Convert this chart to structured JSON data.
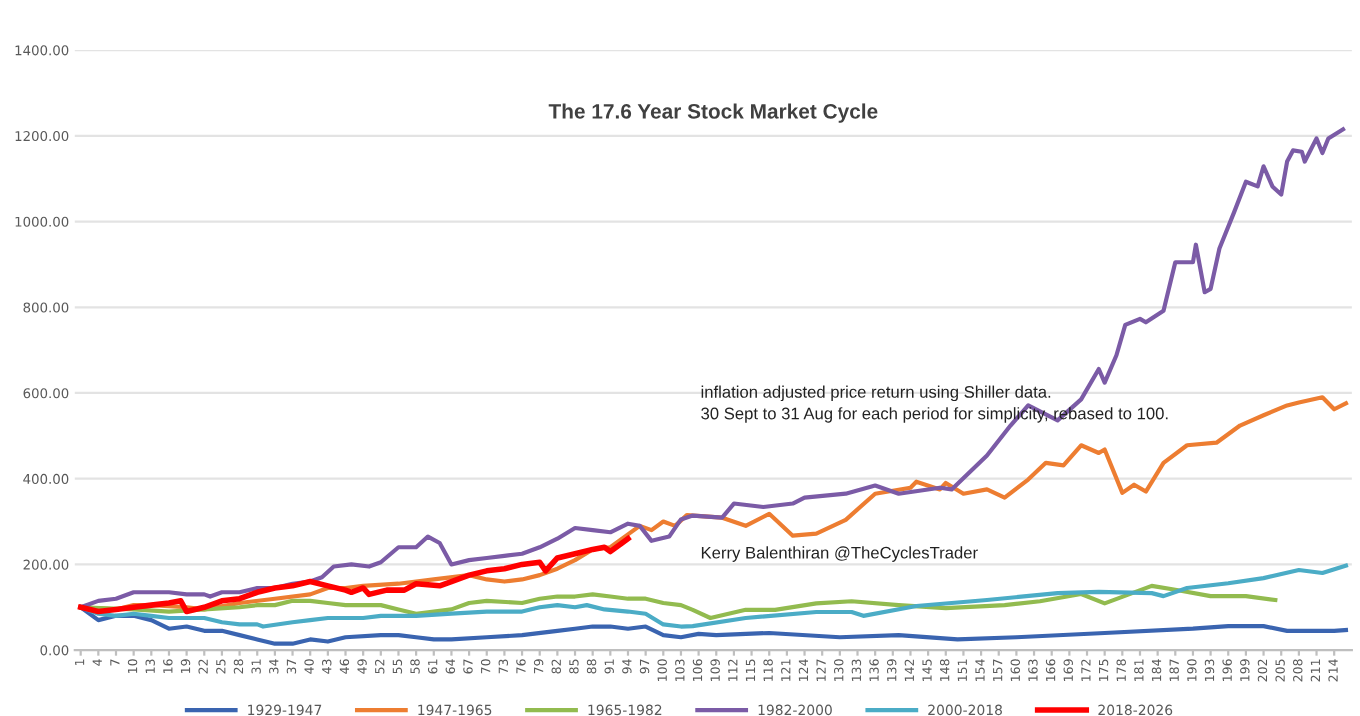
{
  "chart_data": {
    "type": "line",
    "title": "The 17.6 Year Stock Market Cycle",
    "xlim": [
      0,
      217
    ],
    "xticks": [
      1,
      4,
      7,
      10,
      13,
      16,
      19,
      22,
      25,
      28,
      31,
      34,
      37,
      40,
      43,
      46,
      49,
      52,
      55,
      58,
      61,
      64,
      67,
      70,
      73,
      76,
      79,
      82,
      85,
      88,
      91,
      94,
      97,
      100,
      103,
      106,
      109,
      112,
      115,
      118,
      121,
      124,
      127,
      130,
      133,
      136,
      139,
      142,
      145,
      148,
      151,
      154,
      157,
      160,
      163,
      166,
      169,
      172,
      175,
      178,
      181,
      184,
      187,
      190,
      193,
      196,
      199,
      202,
      205,
      208,
      211,
      214
    ],
    "ylim": [
      0,
      1400
    ],
    "yticks": [
      {
        "value": 0,
        "label": "0.00"
      },
      {
        "value": 200,
        "label": "200.00"
      },
      {
        "value": 400,
        "label": "400.00"
      },
      {
        "value": 600,
        "label": "600.00"
      },
      {
        "value": 800,
        "label": "800.00"
      },
      {
        "value": 1000,
        "label": "1000.00"
      },
      {
        "value": 1200,
        "label": "1200.00"
      },
      {
        "value": 1400,
        "label": "1400.00"
      }
    ],
    "grid": "y",
    "legend": "bottom",
    "marker": "none",
    "line_style": "solid",
    "annotations": [
      "inflation adjusted price return using Shiller data.\n30 Sept to 31 Aug for each period for simplicity, rebased to 100.",
      "Kerry Balenthiran @TheCyclesTrader"
    ],
    "series": [
      {
        "name": "1929-1947",
        "color": "#3a64b0",
        "x": [
          1,
          4,
          7,
          10,
          13,
          16,
          19,
          22,
          25,
          28,
          31,
          34,
          37,
          40,
          43,
          46,
          52,
          55,
          58,
          61,
          64,
          70,
          76,
          82,
          85,
          88,
          91,
          94,
          97,
          100,
          103,
          106,
          109,
          118,
          130,
          140,
          150,
          160,
          175,
          190,
          196,
          202,
          206,
          211,
          214,
          216
        ],
        "values": [
          100,
          70,
          80,
          80,
          70,
          50,
          55,
          45,
          45,
          35,
          25,
          15,
          15,
          25,
          20,
          30,
          35,
          35,
          30,
          25,
          25,
          30,
          35,
          45,
          50,
          55,
          55,
          50,
          55,
          35,
          30,
          38,
          35,
          40,
          30,
          35,
          25,
          30,
          40,
          50,
          56,
          56,
          45,
          45,
          45,
          47
        ]
      },
      {
        "name": "1947-1965",
        "color": "#ed7d31",
        "x": [
          1,
          7,
          10,
          13,
          19,
          22,
          28,
          34,
          40,
          43,
          46,
          49,
          55,
          61,
          67,
          70,
          73,
          76,
          79,
          82,
          85,
          88,
          91,
          94,
          96,
          98,
          100,
          102,
          104,
          110,
          114,
          118,
          122,
          126,
          131,
          136,
          142,
          143,
          147,
          148,
          151,
          155,
          158,
          162,
          165,
          168,
          171,
          174,
          175,
          178,
          180,
          182,
          185,
          189,
          194,
          198,
          202,
          206,
          208,
          212,
          214,
          216
        ],
        "values": [
          100,
          95,
          105,
          105,
          100,
          95,
          110,
          120,
          130,
          145,
          145,
          150,
          155,
          165,
          175,
          165,
          160,
          165,
          175,
          190,
          210,
          235,
          240,
          270,
          290,
          280,
          300,
          290,
          315,
          309,
          290,
          318,
          267,
          272,
          304,
          365,
          379,
          393,
          375,
          390,
          365,
          375,
          356,
          398,
          437,
          431,
          478,
          460,
          468,
          367,
          386,
          370,
          437,
          478,
          484,
          524,
          548,
          571,
          578,
          590,
          562,
          576
        ]
      },
      {
        "name": "1965-1982",
        "color": "#92bb4f",
        "x": [
          1,
          10,
          16,
          22,
          28,
          31,
          34,
          37,
          40,
          43,
          46,
          52,
          55,
          58,
          61,
          64,
          67,
          70,
          76,
          79,
          82,
          85,
          88,
          91,
          94,
          97,
          100,
          103,
          105,
          108,
          114,
          119,
          126,
          132,
          140,
          148,
          158,
          164,
          171,
          175,
          183,
          187,
          193,
          199,
          204
        ],
        "values": [
          100,
          95,
          90,
          95,
          100,
          105,
          105,
          115,
          115,
          110,
          105,
          105,
          95,
          85,
          90,
          95,
          110,
          115,
          110,
          120,
          125,
          125,
          130,
          125,
          120,
          120,
          110,
          105,
          94,
          75,
          94,
          94,
          109,
          114,
          105,
          98,
          105,
          114,
          131,
          109,
          150,
          141,
          126,
          126,
          117
        ]
      },
      {
        "name": "1982-2000",
        "color": "#7b5ba6",
        "x": [
          1,
          4,
          7,
          10,
          13,
          16,
          19,
          22,
          23,
          25,
          28,
          31,
          34,
          37,
          40,
          42,
          44,
          47,
          50,
          52,
          55,
          58,
          60,
          62,
          64,
          67,
          70,
          73,
          76,
          79,
          82,
          85,
          88,
          91,
          94,
          96,
          98,
          101,
          103,
          105,
          110,
          112,
          117,
          122,
          124,
          131,
          136,
          140,
          147,
          149,
          155,
          159,
          162,
          167,
          171,
          174,
          175,
          177,
          178.5,
          181,
          182,
          185,
          187,
          190,
          190.5,
          192,
          193,
          194.5,
          197,
          199,
          201,
          202,
          203.5,
          205,
          206,
          207,
          208.5,
          209,
          211,
          212,
          213,
          215.5
        ],
        "values": [
          100,
          115,
          120,
          135,
          135,
          135,
          130,
          130,
          125,
          135,
          135,
          145,
          145,
          155,
          160,
          170,
          195,
          200,
          195,
          205,
          240,
          240,
          265,
          250,
          200,
          210,
          215,
          220,
          225,
          240,
          260,
          285,
          280,
          275,
          295,
          290,
          255,
          265,
          305,
          314,
          309,
          342,
          334,
          342,
          356,
          365,
          384,
          365,
          379,
          375,
          454,
          524,
          571,
          536,
          585,
          656,
          624,
          688,
          759,
          773,
          765,
          792,
          905,
          905,
          946,
          835,
          843,
          937,
          1022,
          1093,
          1082,
          1129,
          1082,
          1063,
          1140,
          1166,
          1163,
          1140,
          1194,
          1160,
          1194,
          1215
        ]
      },
      {
        "name": "2000-2018",
        "color": "#4bacc6",
        "x": [
          1,
          4,
          7,
          10,
          13,
          16,
          22,
          25,
          28,
          31,
          32,
          37,
          40,
          43,
          49,
          52,
          58,
          64,
          70,
          76,
          79,
          82,
          85,
          87,
          90,
          94,
          97,
          100,
          103,
          105,
          114,
          126,
          132,
          134,
          143,
          155,
          167,
          174,
          183,
          185,
          189,
          196,
          202,
          208,
          212,
          216
        ],
        "values": [
          100,
          85,
          80,
          85,
          80,
          75,
          75,
          65,
          60,
          60,
          55,
          65,
          70,
          75,
          75,
          80,
          80,
          85,
          90,
          90,
          100,
          105,
          100,
          105,
          95,
          90,
          85,
          60,
          55,
          56,
          75,
          89,
          89,
          80,
          103,
          117,
          133,
          136,
          133,
          126,
          145,
          156,
          168,
          187,
          180,
          197
        ]
      },
      {
        "name": "2018-2026",
        "color": "#ff0000",
        "x": [
          1,
          4,
          7,
          10,
          13,
          16,
          18,
          19,
          22,
          25,
          28,
          31,
          34,
          37,
          40,
          43,
          46,
          47,
          49,
          50,
          53,
          56,
          58,
          62,
          64,
          67,
          70,
          73,
          76,
          79,
          80,
          82,
          85,
          88,
          90,
          91,
          93,
          94
        ],
        "values": [
          100,
          90,
          95,
          100,
          105,
          110,
          115,
          90,
          100,
          115,
          120,
          135,
          145,
          150,
          160,
          150,
          140,
          135,
          145,
          130,
          140,
          140,
          155,
          150,
          160,
          175,
          185,
          190,
          200,
          205,
          185,
          215,
          225,
          235,
          240,
          230,
          250,
          260
        ]
      }
    ]
  }
}
